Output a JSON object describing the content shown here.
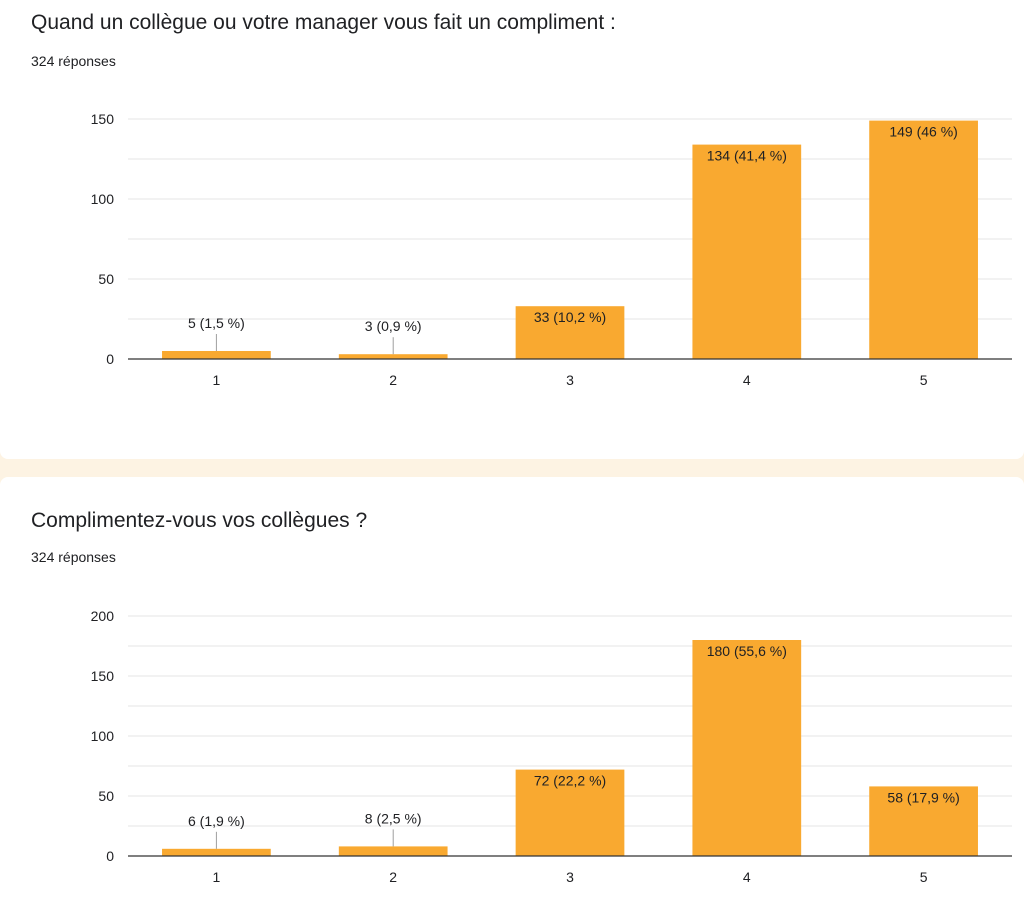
{
  "colors": {
    "bar": "#f9a930",
    "grid": "#e6e6e6",
    "axis": "#333333",
    "leader": "#9e9e9e",
    "text": "#202124",
    "page_bg": "#fdf3e3"
  },
  "questions": [
    {
      "title": "Quand un collègue ou votre manager vous fait un compliment :",
      "count_label": "324 réponses"
    },
    {
      "title": "Complimentez-vous vos collègues ?",
      "count_label": "324 réponses"
    }
  ],
  "chart_data": [
    {
      "type": "bar",
      "title": "Quand un collègue ou votre manager vous fait un compliment :",
      "categories": [
        "1",
        "2",
        "3",
        "4",
        "5"
      ],
      "values": [
        5,
        3,
        33,
        134,
        149
      ],
      "data_labels": [
        "5 (1,5 %)",
        "3 (0,9 %)",
        "33 (10,2 %)",
        "134 (41,4 %)",
        "149 (46 %)"
      ],
      "yticks": [
        0,
        50,
        100,
        150
      ],
      "ylim": [
        0,
        150
      ],
      "xlabel": "",
      "ylabel": "",
      "grid": true
    },
    {
      "type": "bar",
      "title": "Complimentez-vous vos collègues ?",
      "categories": [
        "1",
        "2",
        "3",
        "4",
        "5"
      ],
      "values": [
        6,
        8,
        72,
        180,
        58
      ],
      "data_labels": [
        "6 (1,9 %)",
        "8 (2,5 %)",
        "72 (22,2 %)",
        "180 (55,6 %)",
        "58 (17,9 %)"
      ],
      "yticks": [
        0,
        50,
        100,
        150,
        200
      ],
      "ylim": [
        0,
        200
      ],
      "xlabel": "",
      "ylabel": "",
      "grid": true
    }
  ]
}
